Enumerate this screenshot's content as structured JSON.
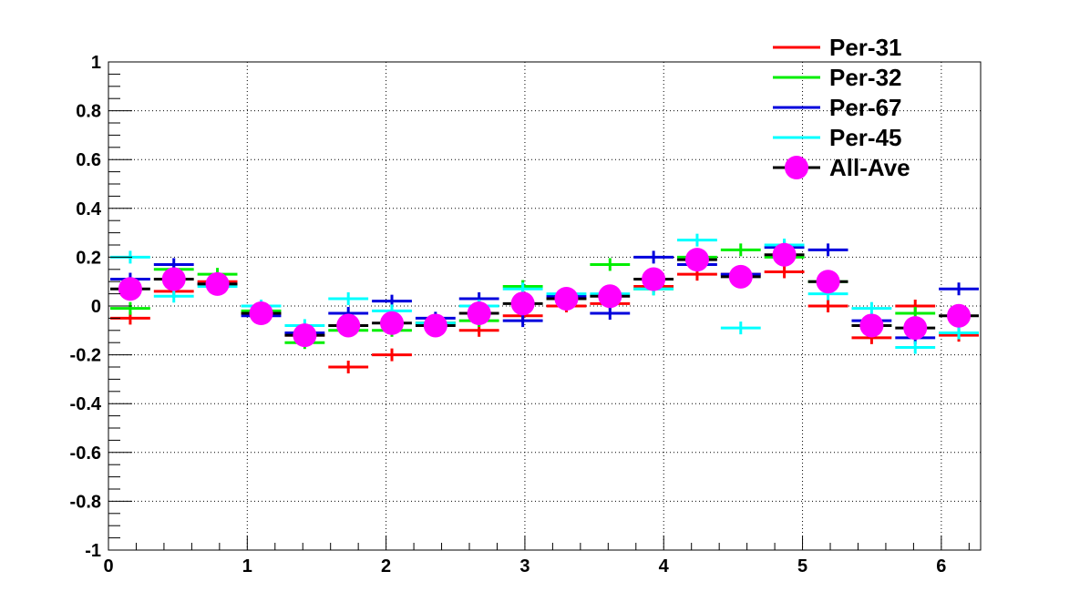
{
  "chart_data": {
    "type": "scatter",
    "title": "",
    "xlabel": "",
    "ylabel": "",
    "xlim": [
      0,
      6.2832
    ],
    "ylim": [
      -1,
      1
    ],
    "grid": true,
    "legend_position": "top-right",
    "x_ticks": [
      "0",
      "1",
      "2",
      "3",
      "4",
      "5",
      "6"
    ],
    "y_ticks": [
      "-1",
      "-0.8",
      "-0.6",
      "-0.4",
      "-0.2",
      "0",
      "0.2",
      "0.4",
      "0.6",
      "0.8",
      "1"
    ],
    "x": [
      0.157,
      0.471,
      0.785,
      1.1,
      1.414,
      1.728,
      2.042,
      2.356,
      2.67,
      2.985,
      3.299,
      3.613,
      3.927,
      4.241,
      4.555,
      4.869,
      5.184,
      5.498,
      5.812,
      6.126
    ],
    "bin_half_width": 0.157,
    "series": [
      {
        "name": "Per-31",
        "color": "#ff0000",
        "marker": "error-bar",
        "values": [
          -0.05,
          0.06,
          0.1,
          -0.03,
          -0.12,
          -0.25,
          -0.2,
          -0.07,
          -0.1,
          -0.04,
          0.0,
          0.01,
          0.08,
          0.13,
          0.13,
          0.14,
          0.0,
          -0.13,
          0.0,
          -0.12
        ]
      },
      {
        "name": "Per-32",
        "color": "#00ee00",
        "marker": "error-bar",
        "values": [
          -0.01,
          0.15,
          0.13,
          -0.02,
          -0.15,
          -0.1,
          -0.1,
          -0.07,
          -0.06,
          0.08,
          0.03,
          0.17,
          0.07,
          0.2,
          0.23,
          0.2,
          0.1,
          -0.08,
          -0.03,
          -0.11
        ]
      },
      {
        "name": "Per-67",
        "color": "#0000dd",
        "marker": "error-bar",
        "values": [
          0.11,
          0.17,
          0.09,
          -0.04,
          -0.11,
          -0.03,
          0.02,
          -0.05,
          0.03,
          -0.06,
          0.04,
          -0.03,
          0.2,
          0.17,
          0.13,
          0.24,
          0.23,
          -0.06,
          -0.13,
          0.07
        ]
      },
      {
        "name": "Per-45",
        "color": "#00ffff",
        "marker": "error-bar",
        "values": [
          0.2,
          0.04,
          0.08,
          0.0,
          -0.08,
          0.03,
          -0.02,
          -0.07,
          0.0,
          0.07,
          0.05,
          0.05,
          0.07,
          0.27,
          -0.09,
          0.25,
          0.05,
          -0.01,
          -0.17,
          -0.11
        ]
      },
      {
        "name": "All-Ave",
        "color": "#ff00ff",
        "marker": "circle",
        "bar_color": "#000000",
        "values": [
          0.07,
          0.11,
          0.09,
          -0.03,
          -0.12,
          -0.08,
          -0.07,
          -0.08,
          -0.03,
          0.01,
          0.03,
          0.04,
          0.11,
          0.19,
          0.12,
          0.21,
          0.1,
          -0.08,
          -0.09,
          -0.04
        ]
      }
    ]
  }
}
